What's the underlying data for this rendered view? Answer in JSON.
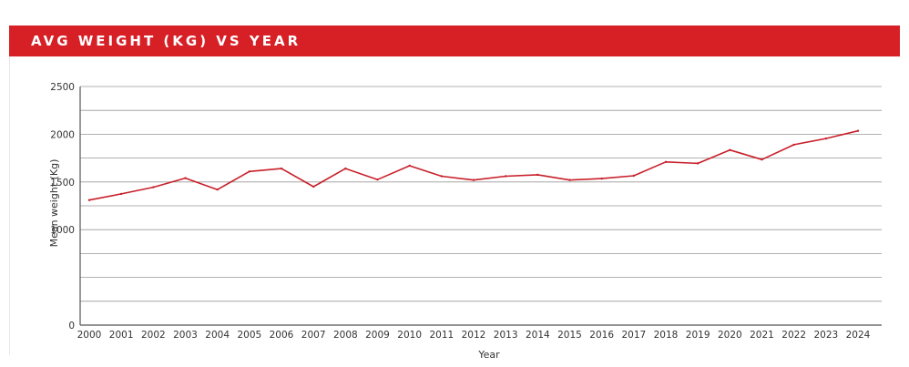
{
  "chart_data": {
    "type": "line",
    "title": "AVG WEIGHT (KG) VS YEAR",
    "xlabel": "Year",
    "ylabel": "Mean weight (Kg)",
    "ylim": [
      0,
      2500
    ],
    "yticks": [
      0,
      1000,
      1500,
      2000,
      2500
    ],
    "grid": true,
    "colors": {
      "title_bar": "#d71f26",
      "line": "#c8202a",
      "grid": "#999999"
    },
    "x": [
      "2000",
      "2001",
      "2002",
      "2003",
      "2004",
      "2005",
      "2006",
      "2007",
      "2008",
      "2009",
      "2010",
      "2011",
      "2012",
      "2013",
      "2014",
      "2015",
      "2016",
      "2017",
      "2018",
      "2019",
      "2020",
      "2021",
      "2022",
      "2023",
      "2024"
    ],
    "series": [
      {
        "values": [
          1310,
          1375,
          1445,
          1540,
          1420,
          1610,
          1640,
          1450,
          1640,
          1525,
          1670,
          1560,
          1520,
          1560,
          1575,
          1520,
          1535,
          1565,
          1710,
          1695,
          1835,
          1735,
          1890,
          1955,
          2035
        ]
      }
    ]
  }
}
